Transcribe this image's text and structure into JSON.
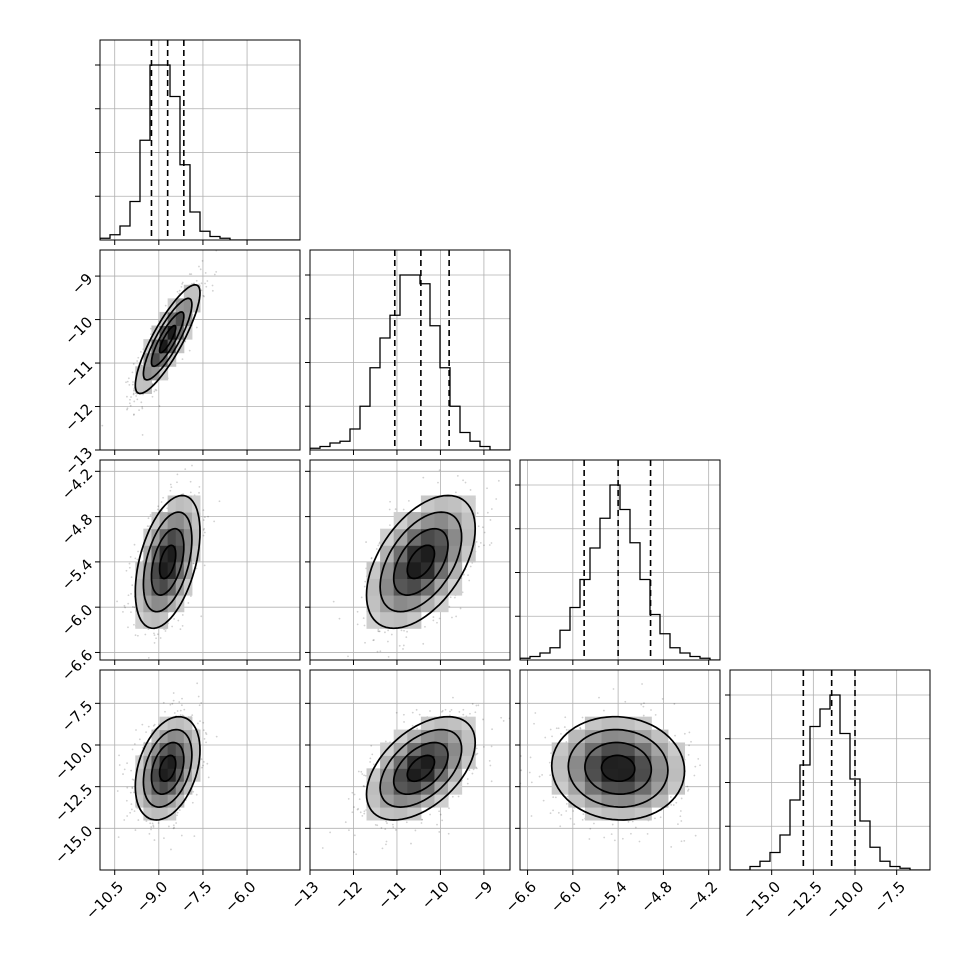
{
  "chart_data": {
    "type": "corner",
    "parameters": [
      {
        "median": -8.7,
        "q16": -9.25,
        "q84": -8.15,
        "range": [
          -11.0,
          -4.2
        ],
        "ticks": [
          -10.5,
          -9.0,
          -7.5,
          -6.0
        ],
        "tick_labels": [
          "−10.5",
          "−9.0",
          "−7.5",
          "−6.0"
        ],
        "hist_edges_from": -11.0,
        "hist_bin": 0.34,
        "hist_counts": [
          1,
          3,
          8,
          22,
          57,
          100,
          100,
          82,
          43,
          16,
          5,
          2,
          1,
          0,
          0,
          0,
          0,
          0,
          0,
          0
        ]
      },
      {
        "median": -10.45,
        "q16": -11.05,
        "q84": -9.8,
        "range": [
          -13.0,
          -8.4
        ],
        "ticks": [
          -13,
          -12,
          -11,
          -10,
          -9
        ],
        "tick_labels": [
          "−13",
          "−12",
          "−11",
          "−10",
          "−9"
        ],
        "hist_edges_from": -13.0,
        "hist_bin": 0.23,
        "hist_counts": [
          1,
          2,
          4,
          5,
          12,
          25,
          47,
          64,
          77,
          100,
          100,
          95,
          71,
          47,
          25,
          10,
          5,
          2,
          0,
          0
        ]
      },
      {
        "median": -5.4,
        "q16": -5.85,
        "q84": -4.97,
        "range": [
          -6.7,
          -4.05
        ],
        "ticks": [
          -6.6,
          -6.0,
          -5.4,
          -4.8,
          -4.2
        ],
        "tick_labels": [
          "−6.6",
          "−6.0",
          "−5.4",
          "−4.8",
          "−4.2"
        ],
        "hist_edges_from": -6.7,
        "hist_bin": 0.1325,
        "hist_counts": [
          1,
          2,
          4,
          7,
          17,
          30,
          46,
          64,
          81,
          100,
          86,
          67,
          46,
          26,
          15,
          7,
          4,
          2,
          1,
          0
        ]
      },
      {
        "median": -11.4,
        "q16": -13.1,
        "q84": -10.0,
        "range": [
          -17.5,
          -5.5
        ],
        "ticks": [
          -15.0,
          -12.5,
          -10.0,
          -7.5
        ],
        "tick_labels": [
          "−15.0",
          "−12.5",
          "−10.0",
          "−7.5"
        ],
        "hist_edges_from": -17.5,
        "hist_bin": 0.6,
        "hist_counts": [
          0,
          0,
          2,
          5,
          10,
          20,
          40,
          60,
          82,
          92,
          100,
          78,
          52,
          28,
          13,
          5,
          2,
          1,
          0,
          0
        ]
      }
    ],
    "correlations": [
      [
        1.0,
        0.85,
        0.45,
        0.35
      ],
      [
        0.85,
        1.0,
        0.5,
        0.5
      ],
      [
        0.45,
        0.5,
        1.0,
        -0.05
      ],
      [
        0.35,
        0.5,
        -0.05,
        1.0
      ]
    ],
    "contour_levels_sigma": [
      0.5,
      1.0,
      1.5,
      2.0
    ],
    "grid": true,
    "title": "",
    "xlabel": "",
    "ylabel": ""
  }
}
